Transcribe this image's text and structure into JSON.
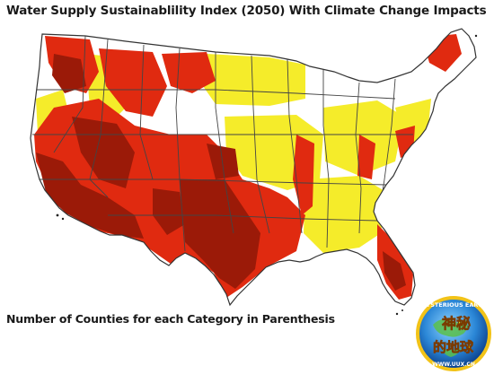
{
  "title": "Water Supply Sustainablility Index (2050) With Climate Change Impacts",
  "caption": "Number of Counties for each Category in Parenthesis",
  "colors": {
    "extreme": "#9b1a08",
    "high": "#e02a10",
    "moderate": "#f5ec2a",
    "low": "#ffffff",
    "border": "#444444"
  },
  "watermark": {
    "top_text": "MYSTERIOUS EARTH",
    "characters": "神秘的地球",
    "url": "WWW.UUX.CN"
  }
}
